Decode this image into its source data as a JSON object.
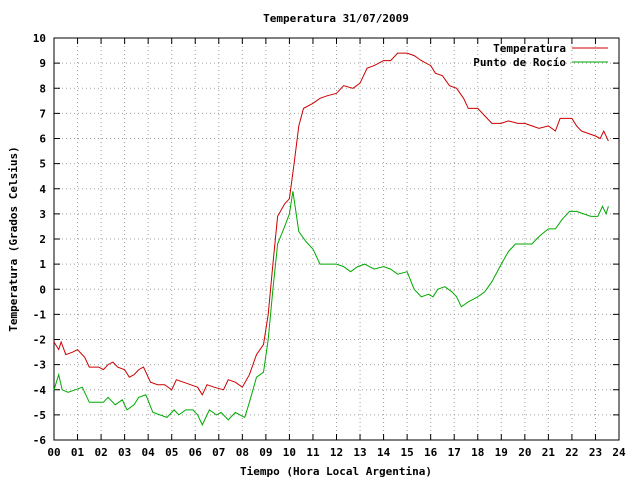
{
  "chart_data": {
    "type": "line",
    "title": "Temperatura 31/07/2009",
    "xlabel": "Tiempo (Hora Local Argentina)",
    "ylabel": "Temperatura (Grados Celsius)",
    "xlim": [
      0,
      24
    ],
    "ylim": [
      -6,
      10
    ],
    "grid": true,
    "legend_position": "top-right",
    "x_tick_labels": [
      "00",
      "01",
      "02",
      "03",
      "04",
      "05",
      "06",
      "07",
      "08",
      "09",
      "10",
      "11",
      "12",
      "13",
      "14",
      "15",
      "16",
      "17",
      "18",
      "19",
      "20",
      "21",
      "22",
      "23",
      "24"
    ],
    "y_tick_labels": [
      "-6",
      "-5",
      "-4",
      "-3",
      "-2",
      "-1",
      "0",
      "1",
      "2",
      "3",
      "4",
      "5",
      "6",
      "7",
      "8",
      "9",
      "10"
    ],
    "series": [
      {
        "name": "Temperatura",
        "color": "#cc0000",
        "points": [
          [
            0.0,
            -2.1
          ],
          [
            0.2,
            -2.4
          ],
          [
            0.3,
            -2.1
          ],
          [
            0.5,
            -2.6
          ],
          [
            0.8,
            -2.5
          ],
          [
            1.0,
            -2.4
          ],
          [
            1.3,
            -2.7
          ],
          [
            1.5,
            -3.1
          ],
          [
            1.9,
            -3.1
          ],
          [
            2.1,
            -3.2
          ],
          [
            2.3,
            -3.0
          ],
          [
            2.5,
            -2.9
          ],
          [
            2.7,
            -3.1
          ],
          [
            3.0,
            -3.2
          ],
          [
            3.2,
            -3.5
          ],
          [
            3.4,
            -3.4
          ],
          [
            3.6,
            -3.2
          ],
          [
            3.8,
            -3.1
          ],
          [
            4.1,
            -3.7
          ],
          [
            4.4,
            -3.8
          ],
          [
            4.7,
            -3.8
          ],
          [
            5.0,
            -4.0
          ],
          [
            5.2,
            -3.6
          ],
          [
            5.5,
            -3.7
          ],
          [
            5.8,
            -3.8
          ],
          [
            6.1,
            -3.9
          ],
          [
            6.3,
            -4.2
          ],
          [
            6.5,
            -3.8
          ],
          [
            6.8,
            -3.9
          ],
          [
            7.2,
            -4.0
          ],
          [
            7.4,
            -3.6
          ],
          [
            7.7,
            -3.7
          ],
          [
            8.0,
            -3.9
          ],
          [
            8.3,
            -3.4
          ],
          [
            8.6,
            -2.6
          ],
          [
            8.9,
            -2.2
          ],
          [
            9.1,
            -1.0
          ],
          [
            9.3,
            1.0
          ],
          [
            9.5,
            2.9
          ],
          [
            9.8,
            3.4
          ],
          [
            10.0,
            3.6
          ],
          [
            10.2,
            5.0
          ],
          [
            10.4,
            6.5
          ],
          [
            10.6,
            7.2
          ],
          [
            11.0,
            7.4
          ],
          [
            11.3,
            7.6
          ],
          [
            11.6,
            7.7
          ],
          [
            12.0,
            7.8
          ],
          [
            12.3,
            8.1
          ],
          [
            12.7,
            8.0
          ],
          [
            13.0,
            8.2
          ],
          [
            13.3,
            8.8
          ],
          [
            13.6,
            8.9
          ],
          [
            14.0,
            9.1
          ],
          [
            14.3,
            9.1
          ],
          [
            14.6,
            9.4
          ],
          [
            15.0,
            9.4
          ],
          [
            15.3,
            9.3
          ],
          [
            15.6,
            9.1
          ],
          [
            16.0,
            8.9
          ],
          [
            16.2,
            8.6
          ],
          [
            16.5,
            8.5
          ],
          [
            16.8,
            8.1
          ],
          [
            17.1,
            8.0
          ],
          [
            17.4,
            7.6
          ],
          [
            17.6,
            7.2
          ],
          [
            18.0,
            7.2
          ],
          [
            18.3,
            6.9
          ],
          [
            18.6,
            6.6
          ],
          [
            19.0,
            6.6
          ],
          [
            19.3,
            6.7
          ],
          [
            19.7,
            6.6
          ],
          [
            20.0,
            6.6
          ],
          [
            20.3,
            6.5
          ],
          [
            20.6,
            6.4
          ],
          [
            21.0,
            6.5
          ],
          [
            21.3,
            6.3
          ],
          [
            21.5,
            6.8
          ],
          [
            22.0,
            6.8
          ],
          [
            22.2,
            6.5
          ],
          [
            22.4,
            6.3
          ],
          [
            22.7,
            6.2
          ],
          [
            23.0,
            6.1
          ],
          [
            23.2,
            6.0
          ],
          [
            23.35,
            6.3
          ],
          [
            23.55,
            5.9
          ]
        ]
      },
      {
        "name": "Punto de Rocío",
        "color": "#00aa00",
        "points": [
          [
            0.0,
            -4.0
          ],
          [
            0.2,
            -3.4
          ],
          [
            0.35,
            -4.0
          ],
          [
            0.6,
            -4.1
          ],
          [
            0.9,
            -4.0
          ],
          [
            1.2,
            -3.9
          ],
          [
            1.5,
            -4.5
          ],
          [
            1.8,
            -4.5
          ],
          [
            2.1,
            -4.5
          ],
          [
            2.3,
            -4.3
          ],
          [
            2.6,
            -4.6
          ],
          [
            2.9,
            -4.4
          ],
          [
            3.1,
            -4.8
          ],
          [
            3.4,
            -4.6
          ],
          [
            3.6,
            -4.3
          ],
          [
            3.9,
            -4.2
          ],
          [
            4.2,
            -4.9
          ],
          [
            4.5,
            -5.0
          ],
          [
            4.8,
            -5.1
          ],
          [
            5.1,
            -4.8
          ],
          [
            5.3,
            -5.0
          ],
          [
            5.6,
            -4.8
          ],
          [
            5.9,
            -4.8
          ],
          [
            6.1,
            -5.0
          ],
          [
            6.3,
            -5.4
          ],
          [
            6.6,
            -4.8
          ],
          [
            6.9,
            -5.0
          ],
          [
            7.1,
            -4.9
          ],
          [
            7.4,
            -5.2
          ],
          [
            7.7,
            -4.9
          ],
          [
            8.1,
            -5.1
          ],
          [
            8.3,
            -4.5
          ],
          [
            8.6,
            -3.5
          ],
          [
            8.9,
            -3.3
          ],
          [
            9.1,
            -2.0
          ],
          [
            9.3,
            0.0
          ],
          [
            9.5,
            1.8
          ],
          [
            9.8,
            2.5
          ],
          [
            10.0,
            3.0
          ],
          [
            10.15,
            3.9
          ],
          [
            10.4,
            2.3
          ],
          [
            10.7,
            1.9
          ],
          [
            11.0,
            1.6
          ],
          [
            11.3,
            1.0
          ],
          [
            11.6,
            1.0
          ],
          [
            12.0,
            1.0
          ],
          [
            12.3,
            0.9
          ],
          [
            12.6,
            0.7
          ],
          [
            12.9,
            0.9
          ],
          [
            13.2,
            1.0
          ],
          [
            13.6,
            0.8
          ],
          [
            14.0,
            0.9
          ],
          [
            14.3,
            0.8
          ],
          [
            14.6,
            0.6
          ],
          [
            15.0,
            0.7
          ],
          [
            15.3,
            0.0
          ],
          [
            15.6,
            -0.3
          ],
          [
            15.9,
            -0.2
          ],
          [
            16.1,
            -0.3
          ],
          [
            16.3,
            0.0
          ],
          [
            16.6,
            0.1
          ],
          [
            16.9,
            -0.1
          ],
          [
            17.1,
            -0.3
          ],
          [
            17.3,
            -0.7
          ],
          [
            17.6,
            -0.5
          ],
          [
            18.0,
            -0.3
          ],
          [
            18.3,
            -0.1
          ],
          [
            18.6,
            0.3
          ],
          [
            19.0,
            1.0
          ],
          [
            19.3,
            1.5
          ],
          [
            19.6,
            1.8
          ],
          [
            20.0,
            1.8
          ],
          [
            20.3,
            1.8
          ],
          [
            20.6,
            2.1
          ],
          [
            21.0,
            2.4
          ],
          [
            21.3,
            2.4
          ],
          [
            21.6,
            2.8
          ],
          [
            21.9,
            3.1
          ],
          [
            22.2,
            3.1
          ],
          [
            22.5,
            3.0
          ],
          [
            22.8,
            2.9
          ],
          [
            23.1,
            2.9
          ],
          [
            23.3,
            3.3
          ],
          [
            23.45,
            3.0
          ],
          [
            23.55,
            3.3
          ]
        ]
      }
    ]
  }
}
